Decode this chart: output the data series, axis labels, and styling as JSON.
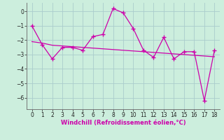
{
  "xlabel": "Windchill (Refroidissement éolien,°C)",
  "bg_color": "#cceedd",
  "line_color": "#cc00aa",
  "grid_color": "#aacccc",
  "x_main": [
    0,
    1,
    2,
    3,
    4,
    5,
    6,
    7,
    8,
    9,
    10,
    11,
    12,
    13,
    14,
    15,
    16,
    17,
    18
  ],
  "y_main": [
    -1.0,
    -2.3,
    -3.3,
    -2.5,
    -2.5,
    -2.7,
    -1.75,
    -1.6,
    0.2,
    -0.1,
    -1.2,
    -2.7,
    -3.2,
    -1.8,
    -3.3,
    -2.8,
    -2.8,
    -6.2,
    -2.7
  ],
  "x_trend": [
    0,
    1,
    2,
    3,
    4,
    5,
    6,
    7,
    8,
    9,
    10,
    11,
    12,
    13,
    14,
    15,
    16,
    17,
    18
  ],
  "y_trend": [
    -2.1,
    -2.2,
    -2.35,
    -2.4,
    -2.45,
    -2.5,
    -2.55,
    -2.6,
    -2.65,
    -2.7,
    -2.75,
    -2.8,
    -2.85,
    -2.9,
    -2.95,
    -3.0,
    -3.05,
    -3.1,
    -3.15
  ],
  "ylim": [
    -6.8,
    0.6
  ],
  "xlim": [
    -0.5,
    18.5
  ],
  "yticks": [
    0,
    -1,
    -2,
    -3,
    -4,
    -5,
    -6
  ],
  "xticks": [
    0,
    1,
    2,
    3,
    4,
    5,
    6,
    7,
    8,
    9,
    10,
    11,
    12,
    13,
    14,
    15,
    16,
    17,
    18
  ],
  "tick_fontsize": 5.5,
  "xlabel_fontsize": 6.0
}
